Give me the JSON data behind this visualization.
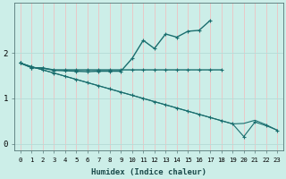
{
  "xlabel": "Humidex (Indice chaleur)",
  "bg_color": "#cceee8",
  "grid_color_v": "#e8c8c8",
  "grid_color_h": "#b8ddd8",
  "line_color": "#1a6e6e",
  "x_values": [
    0,
    1,
    2,
    3,
    4,
    5,
    6,
    7,
    8,
    9,
    10,
    11,
    12,
    13,
    14,
    15,
    16,
    17,
    18,
    19,
    20,
    21,
    22,
    23
  ],
  "line_flat_y": [
    1.78,
    1.68,
    1.67,
    1.63,
    1.63,
    1.63,
    1.63,
    1.63,
    1.63,
    1.63,
    1.63,
    1.63,
    1.63,
    1.63,
    1.63,
    1.63,
    1.63,
    1.63,
    1.63,
    null,
    null,
    null,
    null,
    null
  ],
  "line_wavy_y": [
    1.78,
    1.68,
    1.67,
    1.62,
    1.61,
    1.6,
    1.59,
    1.6,
    1.6,
    1.6,
    1.88,
    2.28,
    2.1,
    2.42,
    2.35,
    2.48,
    2.5,
    2.72,
    null,
    null,
    null,
    null,
    null,
    null
  ],
  "line_diag1_y": [
    1.78,
    1.7,
    1.63,
    1.56,
    1.49,
    1.42,
    1.35,
    1.28,
    1.21,
    1.14,
    1.07,
    1.0,
    0.93,
    0.86,
    0.79,
    0.72,
    0.65,
    0.58,
    0.51,
    0.44,
    0.45,
    0.52,
    0.42,
    0.3
  ],
  "line_diag2_y": [
    1.78,
    1.7,
    1.63,
    1.56,
    1.49,
    1.42,
    1.35,
    1.28,
    1.21,
    1.14,
    1.07,
    1.0,
    0.93,
    0.86,
    0.79,
    0.72,
    0.65,
    0.58,
    0.51,
    0.44,
    0.16,
    0.48,
    0.4,
    0.3
  ],
  "ylim": [
    -0.15,
    3.1
  ],
  "xlim": [
    -0.5,
    23.5
  ],
  "yticks": [
    0,
    1,
    2
  ],
  "xticks": [
    0,
    1,
    2,
    3,
    4,
    5,
    6,
    7,
    8,
    9,
    10,
    11,
    12,
    13,
    14,
    15,
    16,
    17,
    18,
    19,
    20,
    21,
    22,
    23
  ]
}
